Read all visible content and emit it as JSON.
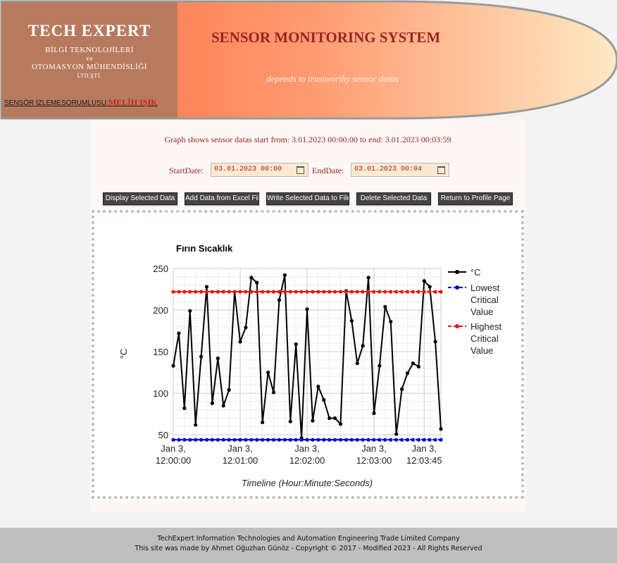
{
  "header": {
    "logo_title": "TECH  EXPERT",
    "logo_line1": "BİLGİ TEKNOLOJİLERİ",
    "logo_line2": "ve",
    "logo_line3": "OTOMASYON MÜHENDİSLİĞİ",
    "logo_line4": "LTD.ŞTİ.",
    "responsible_label": "SENSÖR İZLEMESORUMLUSU:",
    "responsible_name": "MELİH IŞIK",
    "system_title": "SENSOR MONITORING SYSTEM",
    "tagline": "depends to trustworthy sensor datas"
  },
  "filter": {
    "range_text": "Graph shows sensor datas start from: 3.01.2023 00:00:00 to end: 3.01.2023 00:03:59",
    "start_label": "StartDate:",
    "start_value": "03.01.2023 00:00",
    "end_label": "EndDate:",
    "end_value": "03.01.2023 00:04"
  },
  "buttons": {
    "display": "Display Selected Data",
    "add_excel": "Add Data from Excel File",
    "write_file": "Write Selected Data to File",
    "delete": "Delete Selected Data",
    "return_profile": "Return to Profile Page"
  },
  "footer": {
    "line1": "TechExpert Information Technologies and Automation Engineering Trade Limited Company",
    "line2": "This site was made by Ahmet Oğuzhan Günöz - Copyright © 2017 - Modified 2023 - All Rights Reserved"
  },
  "colors": {
    "accent_red": "#9b2323",
    "banner_orange": "#ff7f50",
    "logo_brown": "#b87a5e"
  },
  "chart_data": {
    "type": "line",
    "title": "Fırın Sıcaklık",
    "xlabel": "Timeline (Hour:Minute:Seconds)",
    "ylabel": "°C",
    "ylim": [
      45,
      250
    ],
    "xlim_seconds": [
      0,
      240
    ],
    "yticks": [
      50,
      100,
      150,
      200,
      250
    ],
    "xticks": [
      {
        "sec": 0,
        "line1": "Jan 3,",
        "line2": "12:00:00"
      },
      {
        "sec": 60,
        "line1": "Jan 3,",
        "line2": "12:01:00"
      },
      {
        "sec": 120,
        "line1": "Jan 3,",
        "line2": "12:02:00"
      },
      {
        "sec": 180,
        "line1": "Jan 3,",
        "line2": "12:03:00"
      },
      {
        "sec": 225,
        "line1": "Jan 3,",
        "line2": "12:03:45"
      }
    ],
    "grid": true,
    "legend_position": "right",
    "series": [
      {
        "name": "°C",
        "color": "#000000",
        "style": "solid",
        "x_seconds": [
          0,
          5,
          10,
          15,
          20,
          25,
          30,
          35,
          40,
          45,
          50,
          55,
          60,
          65,
          70,
          75,
          80,
          85,
          90,
          95,
          100,
          105,
          110,
          115,
          120,
          125,
          130,
          135,
          140,
          145,
          150,
          155,
          160,
          165,
          170,
          175,
          180,
          185,
          190,
          195,
          200,
          205,
          210,
          215,
          220,
          225,
          230,
          235,
          240
        ],
        "values": [
          133,
          172,
          82,
          199,
          62,
          144,
          228,
          88,
          142,
          85,
          104,
          222,
          162,
          179,
          239,
          233,
          65,
          125,
          101,
          212,
          242,
          66,
          159,
          46,
          201,
          67,
          108,
          92,
          70,
          70,
          63,
          223,
          187,
          136,
          157,
          239,
          76,
          133,
          204,
          186,
          51,
          105,
          124,
          136,
          132,
          235,
          228,
          162,
          57
        ]
      },
      {
        "name": "Lowest Critical Value",
        "color": "#0000cc",
        "style": "dashed",
        "constant": 44
      },
      {
        "name": "Highest Critical Value",
        "color": "#ee1111",
        "style": "dashed",
        "constant": 222
      }
    ]
  }
}
